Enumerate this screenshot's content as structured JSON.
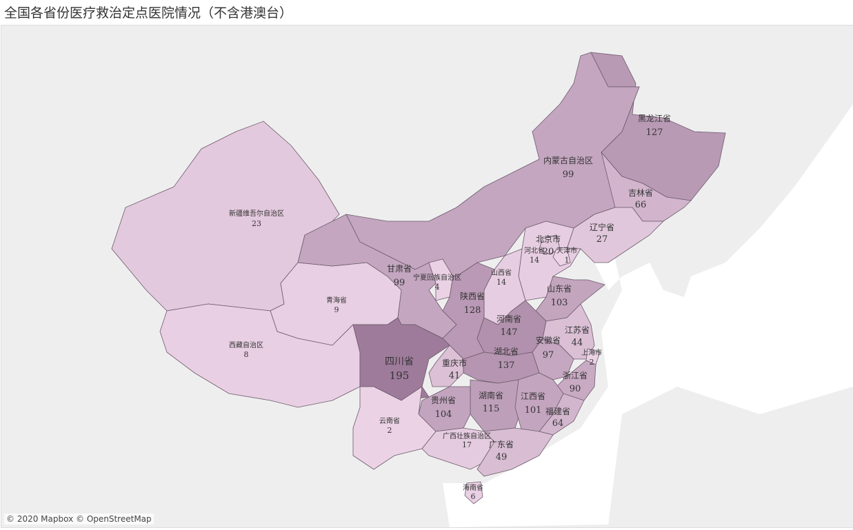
{
  "title": "全国各省份医疗救治定点医院情况（不含港澳台）",
  "attribution": "© 2020 Mapbox © OpenStreetMap",
  "colors": {
    "low": "#ecd3e6",
    "high": "#9e7b9b",
    "land": "#e3e3e3",
    "sea": "#ffffff",
    "border": "#6b5a6a"
  },
  "provinces": [
    {
      "name": "黑龙江省",
      "value": 127
    },
    {
      "name": "内蒙古自治区",
      "value": 99
    },
    {
      "name": "吉林省",
      "value": 66
    },
    {
      "name": "辽宁省",
      "value": 27
    },
    {
      "name": "北京市",
      "value": 20
    },
    {
      "name": "河北省",
      "value": 14
    },
    {
      "name": "天津市",
      "value": 1
    },
    {
      "name": "山西省",
      "value": 14
    },
    {
      "name": "山东省",
      "value": 103
    },
    {
      "name": "新疆维吾尔自治区",
      "value": 23
    },
    {
      "name": "青海省",
      "value": 9
    },
    {
      "name": "西藏自治区",
      "value": 8
    },
    {
      "name": "甘肃省",
      "value": 99
    },
    {
      "name": "宁夏回族自治区",
      "value": 4
    },
    {
      "name": "陕西省",
      "value": 128
    },
    {
      "name": "河南省",
      "value": 147
    },
    {
      "name": "江苏省",
      "value": 44
    },
    {
      "name": "安徽省",
      "value": 97
    },
    {
      "name": "上海市",
      "value": 2
    },
    {
      "name": "湖北省",
      "value": 137
    },
    {
      "name": "四川省",
      "value": 195
    },
    {
      "name": "重庆市",
      "value": 41
    },
    {
      "name": "浙江省",
      "value": 90
    },
    {
      "name": "湖南省",
      "value": 115
    },
    {
      "name": "江西省",
      "value": 101
    },
    {
      "name": "贵州省",
      "value": 104
    },
    {
      "name": "福建省",
      "value": 64
    },
    {
      "name": "云南省",
      "value": 2
    },
    {
      "name": "广西壮族自治区",
      "value": 17
    },
    {
      "name": "广东省",
      "value": 49
    },
    {
      "name": "海南省",
      "value": 6
    }
  ]
}
